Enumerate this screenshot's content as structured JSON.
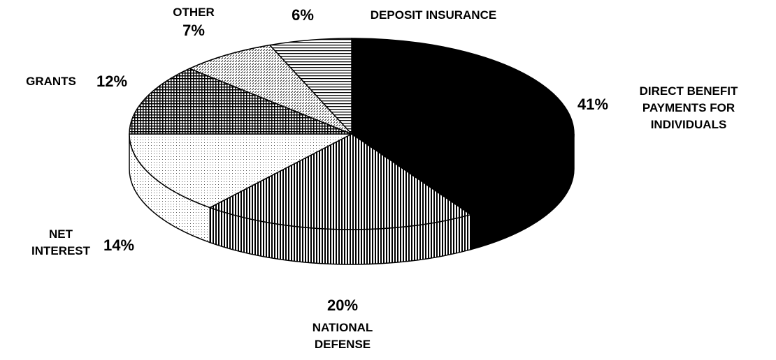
{
  "chart_data": {
    "type": "pie",
    "categories": [
      "DIRECT BENEFIT PAYMENTS FOR INDIVIDUALS",
      "NATIONAL DEFENSE",
      "NET INTEREST",
      "GRANTS",
      "OTHER",
      "DEPOSIT INSURANCE"
    ],
    "values": [
      41,
      20,
      14,
      12,
      7,
      6
    ],
    "value_labels": [
      "41%",
      "20%",
      "14%",
      "12%",
      "7%",
      "6%"
    ],
    "colors": [
      "#000000",
      "#000000",
      "#555555",
      "#000000",
      "#666666",
      "#000000"
    ]
  }
}
